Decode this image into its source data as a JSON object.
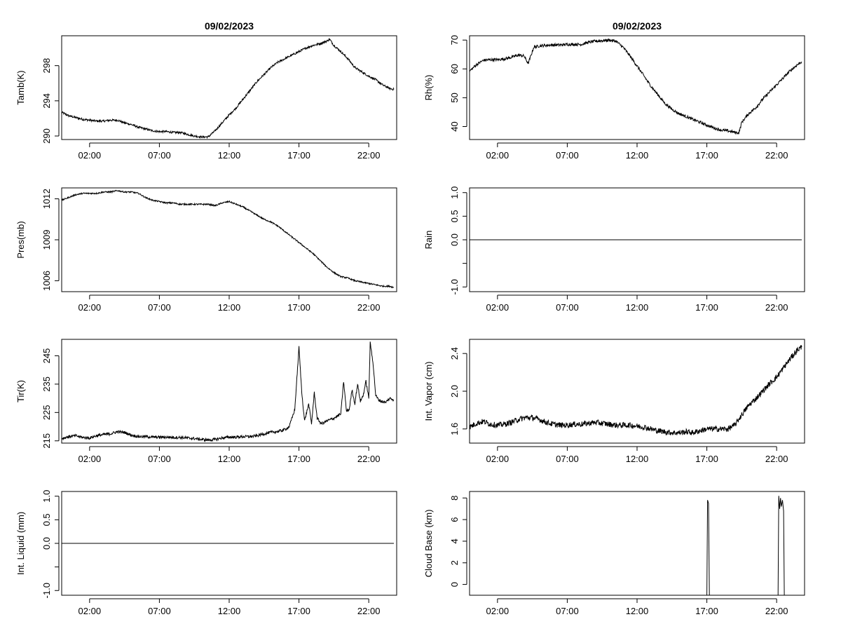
{
  "chart_data": [
    {
      "type": "line",
      "title": "09/02/2023",
      "ylabel": "Tamb(K)",
      "xlim": [
        0,
        24
      ],
      "ylim": [
        289.6,
        301.4
      ],
      "x_ticks": [
        {
          "v": 2,
          "label": "02:00"
        },
        {
          "v": 7,
          "label": "07:00"
        },
        {
          "v": 12,
          "label": "12:00"
        },
        {
          "v": 17,
          "label": "17:00"
        },
        {
          "v": 22,
          "label": "22:00"
        }
      ],
      "y_ticks": [
        {
          "v": 290,
          "label": "290"
        },
        {
          "v": 294,
          "label": "294"
        },
        {
          "v": 298,
          "label": "298"
        }
      ],
      "noise": 0.12,
      "x": [
        0,
        0.5,
        1,
        1.5,
        2,
        2.5,
        3,
        3.5,
        4,
        4.5,
        5,
        5.5,
        6,
        6.5,
        7,
        7.5,
        8,
        8.5,
        9,
        9.5,
        10,
        10.5,
        11,
        11.5,
        12,
        12.5,
        13,
        13.5,
        14,
        14.5,
        15,
        15.5,
        16,
        16.5,
        17,
        17.5,
        18,
        18.5,
        19,
        19.2,
        19.5,
        20,
        20.5,
        21,
        21.5,
        22,
        22.5,
        23,
        23.5,
        23.8
      ],
      "y": [
        292.7,
        292.3,
        292.1,
        291.9,
        291.8,
        291.7,
        291.7,
        291.8,
        291.8,
        291.5,
        291.3,
        291.0,
        290.8,
        290.6,
        290.5,
        290.5,
        290.4,
        290.4,
        290.2,
        290.0,
        289.9,
        289.9,
        290.6,
        291.5,
        292.4,
        293.2,
        294.2,
        295.2,
        296.2,
        297.0,
        297.8,
        298.4,
        298.8,
        299.2,
        299.6,
        300.0,
        300.3,
        300.5,
        300.8,
        301.0,
        300.3,
        299.6,
        298.8,
        297.8,
        297.3,
        296.8,
        296.4,
        295.8,
        295.4,
        295.3
      ]
    },
    {
      "type": "line",
      "title": "09/02/2023",
      "ylabel": "Rh(%)",
      "xlim": [
        0,
        24
      ],
      "ylim": [
        35.5,
        71.5
      ],
      "x_ticks": [
        {
          "v": 2,
          "label": "02:00"
        },
        {
          "v": 7,
          "label": "07:00"
        },
        {
          "v": 12,
          "label": "12:00"
        },
        {
          "v": 17,
          "label": "17:00"
        },
        {
          "v": 22,
          "label": "22:00"
        }
      ],
      "y_ticks": [
        {
          "v": 40,
          "label": "40"
        },
        {
          "v": 50,
          "label": "50"
        },
        {
          "v": 60,
          "label": "60"
        },
        {
          "v": 70,
          "label": "70"
        }
      ],
      "noise": 0.5,
      "x": [
        0,
        0.5,
        1,
        1.5,
        2,
        2.5,
        3,
        3.5,
        3.9,
        4.2,
        4.6,
        5,
        5.5,
        6,
        6.5,
        7,
        7.5,
        8,
        8.5,
        9,
        9.5,
        10,
        10.5,
        11,
        11.5,
        12,
        12.5,
        13,
        13.5,
        14,
        14.5,
        15,
        15.5,
        16,
        16.5,
        17,
        17.5,
        18,
        18.5,
        19,
        19.3,
        19.5,
        20,
        20.5,
        21,
        21.5,
        22,
        22.5,
        23,
        23.5,
        23.8
      ],
      "y": [
        59.2,
        61.5,
        63,
        63.2,
        63.2,
        63.5,
        64,
        64.8,
        64.5,
        61.8,
        67.5,
        68,
        68.2,
        68.3,
        68.3,
        68.5,
        68.5,
        68.5,
        69.2,
        69.6,
        69.8,
        70,
        69.6,
        67.5,
        64.5,
        61,
        57.5,
        54,
        51,
        48,
        46,
        44.5,
        43.5,
        42.5,
        41.5,
        40.5,
        39.5,
        38.8,
        38.5,
        38,
        37.8,
        41.5,
        44.5,
        46.5,
        49.5,
        52,
        54.5,
        57,
        59.5,
        61.5,
        62.5
      ]
    },
    {
      "type": "line",
      "ylabel": "Pres(mb)",
      "xlim": [
        0,
        24
      ],
      "ylim": [
        1005.2,
        1012.8
      ],
      "x_ticks": [
        {
          "v": 2,
          "label": "02:00"
        },
        {
          "v": 7,
          "label": "07:00"
        },
        {
          "v": 12,
          "label": "12:00"
        },
        {
          "v": 17,
          "label": "17:00"
        },
        {
          "v": 22,
          "label": "22:00"
        }
      ],
      "y_ticks": [
        {
          "v": 1006,
          "label": "1006"
        },
        {
          "v": 1009,
          "label": "1009"
        },
        {
          "v": 1012,
          "label": "1012"
        }
      ],
      "noise": 0.05,
      "x": [
        0,
        0.5,
        1,
        1.5,
        2,
        2.5,
        3,
        3.5,
        4,
        4.5,
        5,
        5.5,
        6,
        6.5,
        7,
        7.5,
        8,
        8.5,
        9,
        9.5,
        10,
        10.5,
        11,
        11.5,
        12,
        12.5,
        13,
        13.5,
        14,
        14.5,
        15,
        15.5,
        16,
        16.5,
        17,
        17.5,
        18,
        18.5,
        19,
        19.5,
        20,
        20.5,
        21,
        21.5,
        22,
        22.5,
        23,
        23.5,
        23.8
      ],
      "y": [
        1011.9,
        1012.1,
        1012.3,
        1012.4,
        1012.4,
        1012.4,
        1012.5,
        1012.5,
        1012.6,
        1012.5,
        1012.5,
        1012.4,
        1012.1,
        1011.9,
        1011.8,
        1011.7,
        1011.7,
        1011.6,
        1011.6,
        1011.6,
        1011.6,
        1011.6,
        1011.5,
        1011.7,
        1011.8,
        1011.6,
        1011.4,
        1011.1,
        1010.8,
        1010.5,
        1010.3,
        1010.0,
        1009.6,
        1009.2,
        1008.8,
        1008.4,
        1008.0,
        1007.5,
        1007.0,
        1006.6,
        1006.3,
        1006.2,
        1006.0,
        1005.9,
        1005.8,
        1005.7,
        1005.6,
        1005.6,
        1005.5
      ]
    },
    {
      "type": "line",
      "ylabel": "Rain",
      "xlim": [
        0,
        24
      ],
      "ylim": [
        -1.1,
        1.1
      ],
      "x_ticks": [
        {
          "v": 2,
          "label": "02:00"
        },
        {
          "v": 7,
          "label": "07:00"
        },
        {
          "v": 12,
          "label": "12:00"
        },
        {
          "v": 17,
          "label": "17:00"
        },
        {
          "v": 22,
          "label": "22:00"
        }
      ],
      "y_ticks": [
        {
          "v": -1.0,
          "label": "-1.0"
        },
        {
          "v": -0.5,
          "label": ""
        },
        {
          "v": 0.0,
          "label": "0.0"
        },
        {
          "v": 0.5,
          "label": "0.5"
        },
        {
          "v": 1.0,
          "label": "1.0"
        }
      ],
      "noise": 0,
      "x": [
        0,
        23.8
      ],
      "y": [
        0,
        0
      ]
    },
    {
      "type": "line",
      "ylabel": "Tir(K)",
      "xlim": [
        0,
        24
      ],
      "ylim": [
        214.2,
        250.8
      ],
      "x_ticks": [
        {
          "v": 2,
          "label": "02:00"
        },
        {
          "v": 7,
          "label": "07:00"
        },
        {
          "v": 12,
          "label": "12:00"
        },
        {
          "v": 17,
          "label": "17:00"
        },
        {
          "v": 22,
          "label": "22:00"
        }
      ],
      "y_ticks": [
        {
          "v": 215,
          "label": "215"
        },
        {
          "v": 225,
          "label": "225"
        },
        {
          "v": 235,
          "label": "235"
        },
        {
          "v": 245,
          "label": "245"
        }
      ],
      "noise": 0.5,
      "x": [
        0,
        0.5,
        1,
        1.5,
        2,
        2.5,
        3,
        3.5,
        4,
        4.5,
        5,
        5.5,
        6,
        6.5,
        7,
        7.5,
        8,
        8.5,
        9,
        9.5,
        10,
        10.5,
        11,
        11.5,
        12,
        12.5,
        13,
        13.5,
        14,
        14.5,
        15,
        15.5,
        16,
        16.3,
        16.7,
        17.0,
        17.2,
        17.4,
        17.7,
        17.9,
        18.1,
        18.3,
        18.6,
        19,
        19.5,
        20,
        20.2,
        20.4,
        20.6,
        20.8,
        21,
        21.2,
        21.4,
        21.6,
        21.8,
        22,
        22.1,
        22.3,
        22.5,
        22.7,
        22.9,
        23.2,
        23.5,
        23.8
      ],
      "y": [
        215.8,
        216.5,
        216.8,
        216.2,
        216.0,
        216.8,
        217.2,
        217.5,
        218.2,
        218.0,
        217.0,
        216.5,
        216.5,
        216.3,
        216.3,
        216.3,
        216.2,
        216.2,
        216.0,
        215.8,
        215.5,
        215.3,
        215.5,
        216.0,
        216.3,
        216.3,
        216.5,
        216.5,
        216.8,
        217.5,
        218.0,
        218.3,
        219.0,
        220.0,
        226.0,
        248.0,
        232.0,
        222.0,
        228.0,
        221.0,
        232.0,
        223.0,
        221.0,
        222.0,
        223.0,
        224.5,
        236.0,
        225.5,
        226.0,
        233.0,
        228.0,
        235.0,
        229.0,
        231.0,
        236.0,
        230.0,
        249.5,
        243.0,
        231.0,
        229.5,
        229.0,
        228.5,
        230.0,
        229.5
      ]
    },
    {
      "type": "line",
      "ylabel": "Int. Vapor (cm)",
      "xlim": [
        0,
        24
      ],
      "ylim": [
        1.45,
        2.55
      ],
      "x_ticks": [
        {
          "v": 2,
          "label": "02:00"
        },
        {
          "v": 7,
          "label": "07:00"
        },
        {
          "v": 12,
          "label": "12:00"
        },
        {
          "v": 17,
          "label": "17:00"
        },
        {
          "v": 22,
          "label": "22:00"
        }
      ],
      "y_ticks": [
        {
          "v": 1.6,
          "label": "1.6"
        },
        {
          "v": 2.0,
          "label": "2.0"
        },
        {
          "v": 2.4,
          "label": "2.4"
        }
      ],
      "noise": 0.03,
      "x": [
        0,
        0.5,
        1,
        1.5,
        2,
        2.5,
        3,
        3.5,
        4,
        4.5,
        5,
        5.5,
        6,
        6.5,
        7,
        7.5,
        8,
        8.5,
        9,
        9.5,
        10,
        10.5,
        11,
        11.5,
        12,
        12.5,
        13,
        13.5,
        14,
        14.5,
        15,
        15.5,
        16,
        16.5,
        17,
        17.5,
        18,
        18.5,
        19,
        19.5,
        20,
        20.5,
        21,
        21.5,
        22,
        22.5,
        23,
        23.5,
        23.8
      ],
      "y": [
        1.62,
        1.66,
        1.68,
        1.65,
        1.64,
        1.65,
        1.67,
        1.7,
        1.72,
        1.72,
        1.7,
        1.67,
        1.65,
        1.64,
        1.64,
        1.65,
        1.65,
        1.66,
        1.67,
        1.66,
        1.65,
        1.64,
        1.64,
        1.64,
        1.63,
        1.62,
        1.6,
        1.58,
        1.57,
        1.56,
        1.56,
        1.57,
        1.56,
        1.58,
        1.6,
        1.6,
        1.6,
        1.6,
        1.64,
        1.75,
        1.85,
        1.92,
        2.0,
        2.08,
        2.15,
        2.25,
        2.35,
        2.44,
        2.47
      ]
    },
    {
      "type": "line",
      "ylabel": "Int. Liquid (mm)",
      "xlim": [
        0,
        24
      ],
      "ylim": [
        -1.1,
        1.1
      ],
      "x_ticks": [
        {
          "v": 2,
          "label": "02:00"
        },
        {
          "v": 7,
          "label": "07:00"
        },
        {
          "v": 12,
          "label": "12:00"
        },
        {
          "v": 17,
          "label": "17:00"
        },
        {
          "v": 22,
          "label": "22:00"
        }
      ],
      "y_ticks": [
        {
          "v": -1.0,
          "label": "-1.0"
        },
        {
          "v": -0.5,
          "label": ""
        },
        {
          "v": 0.0,
          "label": "0.0"
        },
        {
          "v": 0.5,
          "label": "0.5"
        },
        {
          "v": 1.0,
          "label": "1.0"
        }
      ],
      "noise": 0,
      "x": [
        0,
        23.8
      ],
      "y": [
        0,
        0
      ]
    },
    {
      "type": "line",
      "ylabel": "Cloud Base (km)",
      "xlim": [
        0,
        24
      ],
      "ylim": [
        -1.0,
        8.6
      ],
      "x_ticks": [
        {
          "v": 2,
          "label": "02:00"
        },
        {
          "v": 7,
          "label": "07:00"
        },
        {
          "v": 12,
          "label": "12:00"
        },
        {
          "v": 17,
          "label": "17:00"
        },
        {
          "v": 22,
          "label": "22:00"
        }
      ],
      "y_ticks": [
        {
          "v": 0,
          "label": "0"
        },
        {
          "v": 2,
          "label": "2"
        },
        {
          "v": 4,
          "label": "4"
        },
        {
          "v": 6,
          "label": "6"
        },
        {
          "v": 8,
          "label": "8"
        }
      ],
      "noise": 0,
      "x": [
        0,
        17.0,
        17.05,
        17.12,
        17.18,
        22.1,
        22.15,
        22.22,
        22.28,
        22.34,
        22.42,
        22.5,
        22.55,
        23.8
      ],
      "y": [
        -1,
        -1,
        7.8,
        7.5,
        -1,
        -1,
        8.2,
        7.0,
        8.0,
        7.2,
        7.8,
        6.8,
        -1,
        -1
      ]
    }
  ]
}
